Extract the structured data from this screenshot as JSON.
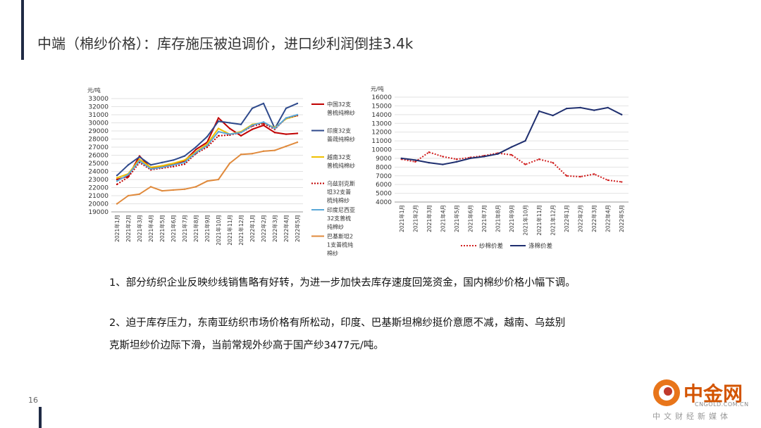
{
  "page": {
    "title": "中端（棉纱价格）：库存施压被迫调价，进口纱利润倒挂3.4k",
    "page_number": "16"
  },
  "paragraphs": {
    "p1": "1、部分纺织企业反映纱线销售略有好转，为进一步加快去库存速度回笼资金，国内棉纱价格小幅下调。",
    "p2_line1": "2、迫于库存压力，东南亚纺织市场价格有所松动，印度、巴基斯坦棉纱挺价意愿不减，越南、乌兹别",
    "p2_line2": "克斯坦纱价边际下滑，当前常规外纱高于国产纱3477元/吨。"
  },
  "logo": {
    "name": "中金网",
    "domain": "CNGOLD.COM.CN",
    "subtitle": "中文财经新媒体"
  },
  "chart_data": [
    {
      "type": "line",
      "ylabel": "元/吨",
      "ylim": [
        19000,
        33000
      ],
      "yticks": [
        19000,
        20000,
        21000,
        22000,
        23000,
        24000,
        25000,
        26000,
        27000,
        28000,
        29000,
        30000,
        31000,
        32000,
        33000
      ],
      "x": [
        "2021年1月",
        "2021年2月",
        "2021年3月",
        "2021年4月",
        "2021年5月",
        "2021年6月",
        "2021年7月",
        "2021年8月",
        "2021年9月",
        "2021年10月",
        "2021年11月",
        "2021年12月",
        "2022年1月",
        "2022年2月",
        "2022年3月",
        "2022年4月",
        "2022年5月"
      ],
      "legend_position": "right",
      "series": [
        {
          "name": "中国32支普梳纯棉纱",
          "color": "#c00000",
          "style": "solid",
          "values": [
            23000,
            23400,
            25900,
            24400,
            24600,
            24900,
            25300,
            26700,
            27600,
            30600,
            29300,
            28400,
            29200,
            29700,
            28800,
            28600,
            28700
          ]
        },
        {
          "name": "印度32支普疏纯棉纱",
          "color": "#2f4a8c",
          "style": "solid",
          "values": [
            23500,
            24800,
            25800,
            24800,
            25100,
            25400,
            25900,
            27000,
            28300,
            30200,
            30000,
            29800,
            31800,
            32400,
            29300,
            31800,
            32400
          ]
        },
        {
          "name": "越南32支普梳纯棉纱",
          "color": "#f0c000",
          "style": "solid",
          "values": [
            23200,
            23700,
            25500,
            24500,
            24700,
            25000,
            25400,
            26400,
            27400,
            29300,
            28600,
            28900,
            29800,
            30000,
            29400,
            30500,
            30900
          ]
        },
        {
          "name": "乌兹别克斯坦32支普梳纯棉纱",
          "color": "#c00000",
          "style": "dotted",
          "values": [
            22400,
            23300,
            25100,
            24200,
            24400,
            24600,
            24900,
            26200,
            27000,
            28400,
            28500,
            28800,
            29600,
            29900,
            29200,
            30600,
            30900
          ]
        },
        {
          "name": "印度尼西亚32支普梳纯棉纱",
          "color": "#5aa8d8",
          "style": "solid",
          "values": [
            22800,
            23600,
            25300,
            24300,
            24500,
            24800,
            25100,
            26300,
            27200,
            28900,
            28600,
            28800,
            29700,
            30100,
            29300,
            30600,
            31000
          ]
        },
        {
          "name": "巴基斯坦21支普梳纯棉纱",
          "color": "#e08a3c",
          "style": "solid",
          "values": [
            20000,
            21000,
            21200,
            22100,
            21600,
            21700,
            21800,
            22100,
            22800,
            23000,
            25000,
            26100,
            26200,
            26500,
            26600,
            27100,
            27600
          ]
        }
      ]
    },
    {
      "type": "line",
      "ylabel": "元/吨",
      "ylim": [
        4000,
        16000
      ],
      "yticks": [
        4000,
        5000,
        6000,
        7000,
        8000,
        9000,
        10000,
        11000,
        12000,
        13000,
        14000,
        15000,
        16000
      ],
      "x": [
        "2021年1月",
        "2021年2月",
        "2021年3月",
        "2021年4月",
        "2021年5月",
        "2021年6月",
        "2021年7月",
        "2021年8月",
        "2021年9月",
        "2021年10月",
        "2021年11月",
        "2021年12月",
        "2022年1月",
        "2022年2月",
        "2022年3月",
        "2022年4月",
        "2022年5月"
      ],
      "legend_position": "bottom",
      "series": [
        {
          "name": "纱棉价差",
          "color": "#d02020",
          "style": "dotted",
          "values": [
            8900,
            8600,
            9700,
            9200,
            8900,
            9100,
            9300,
            9600,
            9400,
            8300,
            8900,
            8500,
            7000,
            6900,
            7200,
            6500,
            6300
          ]
        },
        {
          "name": "涤棉价差",
          "color": "#1f2f6f",
          "style": "solid",
          "values": [
            9000,
            8800,
            8500,
            8300,
            8600,
            9000,
            9200,
            9500,
            10300,
            11000,
            14400,
            13900,
            14700,
            14800,
            14500,
            14800,
            14000
          ]
        }
      ]
    }
  ]
}
